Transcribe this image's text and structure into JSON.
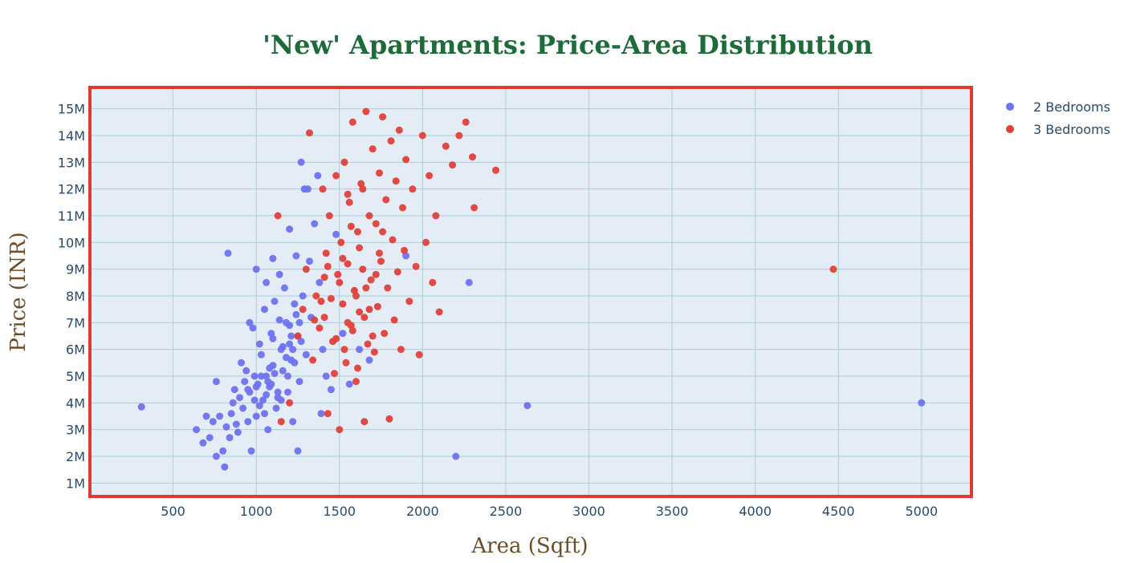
{
  "chart_data": {
    "type": "scatter",
    "title": "'New' Apartments: Price-Area Distribution",
    "xlabel": "Area (Sqft)",
    "ylabel": "Price (INR)",
    "xlim": [
      0,
      5300
    ],
    "ylim": [
      500000,
      15800000
    ],
    "xticks": [
      {
        "value": 500,
        "label": "500"
      },
      {
        "value": 1000,
        "label": "1000"
      },
      {
        "value": 1500,
        "label": "1500"
      },
      {
        "value": 2000,
        "label": "2000"
      },
      {
        "value": 2500,
        "label": "2500"
      },
      {
        "value": 3000,
        "label": "3000"
      },
      {
        "value": 3500,
        "label": "3500"
      },
      {
        "value": 4000,
        "label": "4000"
      },
      {
        "value": 4500,
        "label": "4500"
      },
      {
        "value": 5000,
        "label": "5000"
      }
    ],
    "yticks": [
      {
        "value": 1000000,
        "label": "1M"
      },
      {
        "value": 2000000,
        "label": "2M"
      },
      {
        "value": 3000000,
        "label": "3M"
      },
      {
        "value": 4000000,
        "label": "4M"
      },
      {
        "value": 5000000,
        "label": "5M"
      },
      {
        "value": 6000000,
        "label": "6M"
      },
      {
        "value": 7000000,
        "label": "7M"
      },
      {
        "value": 8000000,
        "label": "8M"
      },
      {
        "value": 9000000,
        "label": "9M"
      },
      {
        "value": 10000000,
        "label": "10M"
      },
      {
        "value": 11000000,
        "label": "11M"
      },
      {
        "value": 12000000,
        "label": "12M"
      },
      {
        "value": 13000000,
        "label": "13M"
      },
      {
        "value": 14000000,
        "label": "14M"
      },
      {
        "value": 15000000,
        "label": "15M"
      }
    ],
    "grid": true,
    "legend_position": "top-right",
    "colors": {
      "plot_bg": "#e4ecf6",
      "plot_border": "#e03a2e",
      "grid": "#a9cfd9"
    },
    "series": [
      {
        "name": "2 Bedrooms",
        "color": "#6f73f0",
        "points": [
          [
            310,
            3850000
          ],
          [
            640,
            3000000
          ],
          [
            680,
            2500000
          ],
          [
            700,
            3500000
          ],
          [
            720,
            2700000
          ],
          [
            740,
            3300000
          ],
          [
            760,
            2000000
          ],
          [
            760,
            4800000
          ],
          [
            780,
            3500000
          ],
          [
            800,
            2200000
          ],
          [
            810,
            1600000
          ],
          [
            820,
            3100000
          ],
          [
            830,
            9600000
          ],
          [
            840,
            2700000
          ],
          [
            850,
            3600000
          ],
          [
            860,
            4000000
          ],
          [
            870,
            4500000
          ],
          [
            880,
            3200000
          ],
          [
            890,
            2900000
          ],
          [
            900,
            4200000
          ],
          [
            910,
            5500000
          ],
          [
            920,
            3800000
          ],
          [
            930,
            4800000
          ],
          [
            940,
            5200000
          ],
          [
            950,
            3300000
          ],
          [
            960,
            7000000
          ],
          [
            960,
            4400000
          ],
          [
            970,
            2200000
          ],
          [
            980,
            6800000
          ],
          [
            990,
            5000000
          ],
          [
            1000,
            9000000
          ],
          [
            1000,
            3500000
          ],
          [
            1010,
            4700000
          ],
          [
            1020,
            6200000
          ],
          [
            1030,
            5800000
          ],
          [
            1040,
            4100000
          ],
          [
            1050,
            7500000
          ],
          [
            1060,
            8500000
          ],
          [
            1060,
            5000000
          ],
          [
            1070,
            3000000
          ],
          [
            1080,
            4600000
          ],
          [
            1090,
            6600000
          ],
          [
            1100,
            9400000
          ],
          [
            1100,
            5400000
          ],
          [
            1110,
            7800000
          ],
          [
            1120,
            3800000
          ],
          [
            1130,
            4200000
          ],
          [
            1140,
            8800000
          ],
          [
            1150,
            6000000
          ],
          [
            1160,
            5200000
          ],
          [
            1170,
            8300000
          ],
          [
            1180,
            7000000
          ],
          [
            1190,
            4400000
          ],
          [
            1200,
            10500000
          ],
          [
            1200,
            6200000
          ],
          [
            1210,
            5600000
          ],
          [
            1220,
            3300000
          ],
          [
            1230,
            7700000
          ],
          [
            1240,
            9500000
          ],
          [
            1250,
            6500000
          ],
          [
            1250,
            2200000
          ],
          [
            1260,
            4800000
          ],
          [
            1270,
            13000000
          ],
          [
            1280,
            8000000
          ],
          [
            1290,
            12000000
          ],
          [
            1300,
            5800000
          ],
          [
            1310,
            12000000
          ],
          [
            1320,
            9300000
          ],
          [
            1330,
            7200000
          ],
          [
            1350,
            10700000
          ],
          [
            1370,
            12500000
          ],
          [
            1380,
            8500000
          ],
          [
            1390,
            3600000
          ],
          [
            1400,
            6000000
          ],
          [
            1420,
            5000000
          ],
          [
            1450,
            4500000
          ],
          [
            1480,
            10300000
          ],
          [
            1520,
            6600000
          ],
          [
            1560,
            4700000
          ],
          [
            1620,
            6000000
          ],
          [
            1680,
            5600000
          ],
          [
            1900,
            9500000
          ],
          [
            2200,
            2000000
          ],
          [
            2280,
            8500000
          ],
          [
            2630,
            3900000
          ],
          [
            5000,
            4000000
          ],
          [
            950,
            4500000
          ],
          [
            1000,
            4600000
          ],
          [
            1030,
            5000000
          ],
          [
            1060,
            4300000
          ],
          [
            1090,
            4700000
          ],
          [
            1110,
            5100000
          ],
          [
            1130,
            4400000
          ],
          [
            1160,
            6100000
          ],
          [
            1180,
            5700000
          ],
          [
            1200,
            6900000
          ],
          [
            1220,
            6000000
          ],
          [
            1240,
            7300000
          ],
          [
            1100,
            6400000
          ],
          [
            1140,
            7100000
          ],
          [
            1080,
            5300000
          ],
          [
            1020,
            3900000
          ],
          [
            1050,
            3600000
          ],
          [
            1150,
            4100000
          ],
          [
            1190,
            5000000
          ],
          [
            1210,
            6500000
          ],
          [
            1230,
            5500000
          ],
          [
            1260,
            7000000
          ],
          [
            1270,
            6300000
          ],
          [
            990,
            4100000
          ],
          [
            1070,
            4800000
          ]
        ]
      },
      {
        "name": "3 Bedrooms",
        "color": "#e0413a",
        "points": [
          [
            1130,
            11000000
          ],
          [
            1150,
            3300000
          ],
          [
            1200,
            4000000
          ],
          [
            1250,
            6500000
          ],
          [
            1280,
            7500000
          ],
          [
            1300,
            9000000
          ],
          [
            1320,
            14100000
          ],
          [
            1340,
            5600000
          ],
          [
            1360,
            8000000
          ],
          [
            1380,
            6800000
          ],
          [
            1400,
            12000000
          ],
          [
            1410,
            7200000
          ],
          [
            1420,
            9600000
          ],
          [
            1430,
            3600000
          ],
          [
            1440,
            11000000
          ],
          [
            1460,
            6300000
          ],
          [
            1480,
            12500000
          ],
          [
            1490,
            8800000
          ],
          [
            1500,
            3000000
          ],
          [
            1510,
            10000000
          ],
          [
            1520,
            7700000
          ],
          [
            1530,
            13000000
          ],
          [
            1540,
            5500000
          ],
          [
            1550,
            9200000
          ],
          [
            1560,
            11500000
          ],
          [
            1570,
            6900000
          ],
          [
            1580,
            14500000
          ],
          [
            1590,
            8200000
          ],
          [
            1600,
            4800000
          ],
          [
            1610,
            10400000
          ],
          [
            1620,
            7400000
          ],
          [
            1630,
            12200000
          ],
          [
            1640,
            9000000
          ],
          [
            1650,
            3300000
          ],
          [
            1660,
            14900000
          ],
          [
            1670,
            6200000
          ],
          [
            1680,
            11000000
          ],
          [
            1690,
            8600000
          ],
          [
            1700,
            13500000
          ],
          [
            1710,
            5900000
          ],
          [
            1720,
            10700000
          ],
          [
            1730,
            7600000
          ],
          [
            1740,
            12600000
          ],
          [
            1750,
            9300000
          ],
          [
            1760,
            14700000
          ],
          [
            1770,
            6600000
          ],
          [
            1780,
            11600000
          ],
          [
            1790,
            8300000
          ],
          [
            1800,
            3400000
          ],
          [
            1810,
            13800000
          ],
          [
            1820,
            10100000
          ],
          [
            1830,
            7100000
          ],
          [
            1840,
            12300000
          ],
          [
            1850,
            8900000
          ],
          [
            1860,
            14200000
          ],
          [
            1870,
            6000000
          ],
          [
            1880,
            11300000
          ],
          [
            1890,
            9700000
          ],
          [
            1900,
            13100000
          ],
          [
            1920,
            7800000
          ],
          [
            1940,
            12000000
          ],
          [
            1960,
            9100000
          ],
          [
            1980,
            5800000
          ],
          [
            2000,
            14000000
          ],
          [
            2020,
            10000000
          ],
          [
            2040,
            12500000
          ],
          [
            2060,
            8500000
          ],
          [
            2080,
            11000000
          ],
          [
            2100,
            7400000
          ],
          [
            2140,
            13600000
          ],
          [
            2180,
            12900000
          ],
          [
            2220,
            14000000
          ],
          [
            2260,
            14500000
          ],
          [
            2300,
            13200000
          ],
          [
            2310,
            11300000
          ],
          [
            2440,
            12700000
          ],
          [
            4470,
            9000000
          ],
          [
            1450,
            7900000
          ],
          [
            1500,
            8500000
          ],
          [
            1550,
            7000000
          ],
          [
            1600,
            8000000
          ],
          [
            1650,
            7200000
          ],
          [
            1480,
            6400000
          ],
          [
            1520,
            9400000
          ],
          [
            1580,
            6700000
          ],
          [
            1620,
            9800000
          ],
          [
            1680,
            7500000
          ],
          [
            1720,
            8800000
          ],
          [
            1430,
            9100000
          ],
          [
            1470,
            5100000
          ],
          [
            1530,
            6000000
          ],
          [
            1570,
            10600000
          ],
          [
            1610,
            5300000
          ],
          [
            1660,
            8300000
          ],
          [
            1700,
            6500000
          ],
          [
            1740,
            9600000
          ],
          [
            1390,
            7800000
          ],
          [
            1350,
            7100000
          ],
          [
            1410,
            8700000
          ],
          [
            1550,
            11800000
          ],
          [
            1640,
            12000000
          ],
          [
            1760,
            10400000
          ]
        ]
      }
    ]
  }
}
